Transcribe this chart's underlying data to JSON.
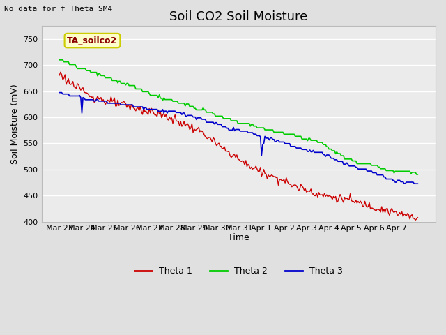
{
  "title": "Soil CO2 Soil Moisture",
  "ylabel": "Soil Moisture (mV)",
  "xlabel": "Time",
  "top_left_note": "No data for f_Theta_SM4",
  "annotation_box": "TA_soilco2",
  "ylim": [
    400,
    775
  ],
  "yticks": [
    400,
    450,
    500,
    550,
    600,
    650,
    700,
    750
  ],
  "x_labels": [
    "Mar 23",
    "Mar 24",
    "Mar 25",
    "Mar 26",
    "Mar 27",
    "Mar 28",
    "Mar 29",
    "Mar 30",
    "Mar 31",
    "Apr 1",
    "Apr 2",
    "Apr 3",
    "Apr 4",
    "Apr 5",
    "Apr 6",
    "Apr 7"
  ],
  "bg_color": "#e0e0e0",
  "plot_bg_color": "#ebebeb",
  "line_colors": {
    "theta1": "#cc0000",
    "theta2": "#00cc00",
    "theta3": "#0000cc"
  },
  "legend_labels": [
    "Theta 1",
    "Theta 2",
    "Theta 3"
  ],
  "title_fontsize": 13,
  "axis_fontsize": 9,
  "tick_fontsize": 8,
  "note_fontsize": 8
}
